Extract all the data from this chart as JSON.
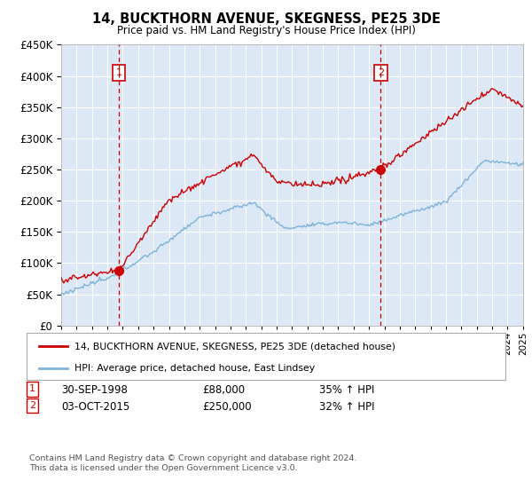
{
  "title": "14, BUCKTHORN AVENUE, SKEGNESS, PE25 3DE",
  "subtitle": "Price paid vs. HM Land Registry's House Price Index (HPI)",
  "legend_line1": "14, BUCKTHORN AVENUE, SKEGNESS, PE25 3DE (detached house)",
  "legend_line2": "HPI: Average price, detached house, East Lindsey",
  "annotation1_date": "30-SEP-1998",
  "annotation1_price": "£88,000",
  "annotation1_hpi": "35% ↑ HPI",
  "annotation2_date": "03-OCT-2015",
  "annotation2_price": "£250,000",
  "annotation2_hpi": "32% ↑ HPI",
  "footer": "Contains HM Land Registry data © Crown copyright and database right 2024.\nThis data is licensed under the Open Government Licence v3.0.",
  "sale1_year": 1998.75,
  "sale1_value": 88000,
  "sale2_year": 2015.75,
  "sale2_value": 250000,
  "y_max": 450000,
  "y_min": 0,
  "x_min": 1995,
  "x_max": 2025,
  "red_color": "#cc0000",
  "blue_color": "#7fb3d9",
  "bg_color": "#dce8f5",
  "grid_color": "#ffffff",
  "vline_color": "#cc0000",
  "box_color": "#cc0000"
}
